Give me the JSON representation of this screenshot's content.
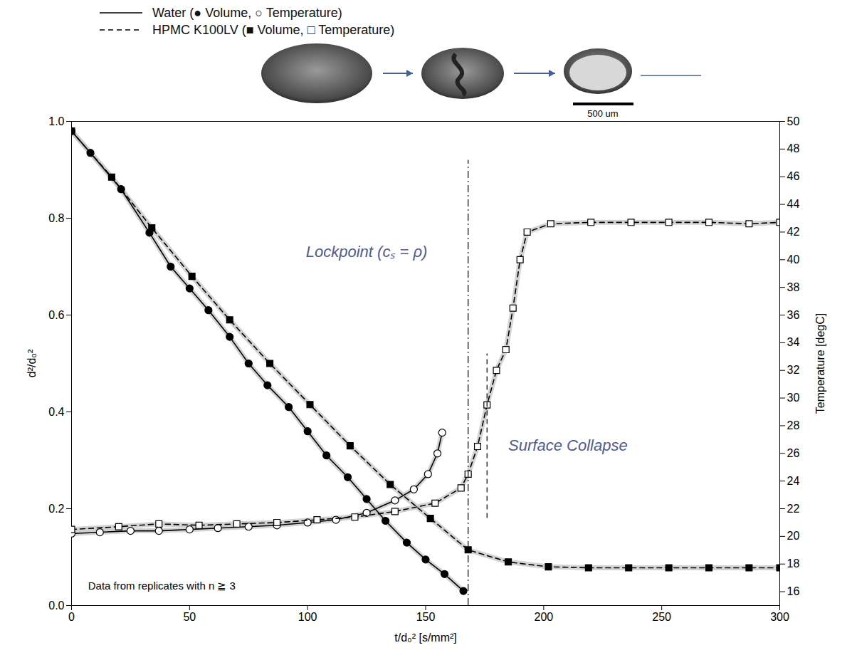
{
  "chart_data": {
    "type": "line",
    "x_label": "t/d₀² [s/mm²]",
    "y_label": "d²/d₀²",
    "y2_label": "Temperature [degC]",
    "xlim": [
      0,
      300
    ],
    "xticks": [
      0,
      50,
      100,
      150,
      200,
      250,
      300
    ],
    "ylim": [
      0,
      1
    ],
    "yticks": [
      {
        "value": 0,
        "label": "0.0"
      },
      {
        "value": 0.2,
        "label": "0.2"
      },
      {
        "value": 0.4,
        "label": "0.4"
      },
      {
        "value": 0.6,
        "label": "0.6"
      },
      {
        "value": 0.8,
        "label": "0.8"
      },
      {
        "value": 1,
        "label": "1.0"
      }
    ],
    "y2lim": [
      15,
      50
    ],
    "y2ticks": [
      16,
      18,
      20,
      22,
      24,
      26,
      28,
      30,
      32,
      34,
      36,
      38,
      40,
      42,
      44,
      46,
      48,
      50
    ],
    "legend": "top-left",
    "legend_entries": [
      {
        "name": "Water",
        "label": "Water (● Volume, ○ Temperature)",
        "line_style": "solid"
      },
      {
        "name": "HPMC K100LV",
        "label": "HPMC K100LV (■ Volume, □ Temperature)",
        "line_style": "dashed"
      }
    ],
    "series": [
      {
        "name": "Water",
        "color": "#000000",
        "line_style": "solid",
        "marker": "circle",
        "x": [
          0,
          8,
          21,
          33,
          42,
          50,
          58,
          67,
          75,
          83,
          92,
          100,
          108,
          117,
          125,
          133,
          142,
          150,
          158,
          166
        ],
        "values": [
          0.98,
          0.935,
          0.86,
          0.77,
          0.7,
          0.655,
          0.61,
          0.555,
          0.5,
          0.455,
          0.41,
          0.36,
          0.31,
          0.265,
          0.22,
          0.175,
          0.13,
          0.095,
          0.065,
          0.03
        ]
      },
      {
        "name": "Water",
        "color": "#000000",
        "line_style": "solid",
        "marker": "open_circle",
        "axis": "y2",
        "x": [
          0,
          12,
          25,
          37,
          50,
          62,
          75,
          87,
          100,
          112,
          125,
          137,
          145,
          151,
          155,
          157
        ],
        "values": [
          20.2,
          20.3,
          20.4,
          20.4,
          20.5,
          20.6,
          20.7,
          20.8,
          21.0,
          21.2,
          21.7,
          22.6,
          23.4,
          24.5,
          26.0,
          27.5
        ]
      },
      {
        "name": "HPMC K100LV",
        "color": "#000000",
        "line_style": "dashed",
        "marker": "square",
        "x": [
          0,
          17,
          34,
          51,
          67,
          84,
          101,
          118,
          135,
          152,
          168,
          185,
          202,
          219,
          236,
          253,
          270,
          287,
          300
        ],
        "values": [
          0.98,
          0.885,
          0.78,
          0.68,
          0.59,
          0.5,
          0.415,
          0.33,
          0.25,
          0.18,
          0.115,
          0.09,
          0.08,
          0.078,
          0.078,
          0.078,
          0.078,
          0.078,
          0.078
        ]
      },
      {
        "name": "HPMC K100LV",
        "color": "#000000",
        "line_style": "dashed",
        "marker": "open_square",
        "axis": "y2",
        "x": [
          0,
          20,
          37,
          54,
          70,
          87,
          104,
          120,
          137,
          154,
          165,
          168,
          172,
          176,
          180,
          184,
          187,
          190,
          193,
          203,
          220,
          237,
          253,
          270,
          287,
          300
        ],
        "values": [
          20.5,
          20.7,
          20.9,
          20.8,
          20.9,
          21.0,
          21.2,
          21.4,
          21.8,
          22.4,
          23.5,
          24.5,
          26.5,
          29.5,
          32.0,
          33.5,
          36.5,
          40.0,
          42.0,
          42.6,
          42.7,
          42.7,
          42.7,
          42.7,
          42.6,
          42.7
        ]
      }
    ],
    "annotations": [
      {
        "text": "Lockpoint (cₛ = ρ)",
        "x": 125,
        "y": 0.73,
        "line_x": 168,
        "line_y": [
          0,
          0.92
        ],
        "line_style": "dashdot",
        "color": "#4f5b93"
      },
      {
        "text": "Surface Collapse",
        "x": 185,
        "y": 0.33,
        "line_x": 176,
        "line_y": [
          0.18,
          0.52
        ],
        "line_style": "dashed",
        "color": "#4f5b93"
      },
      {
        "text": "Data from replicates with n ≧ 3",
        "x": 7,
        "y": 0.04,
        "color": "#000000"
      }
    ],
    "scale_bar_label": "500 um"
  }
}
